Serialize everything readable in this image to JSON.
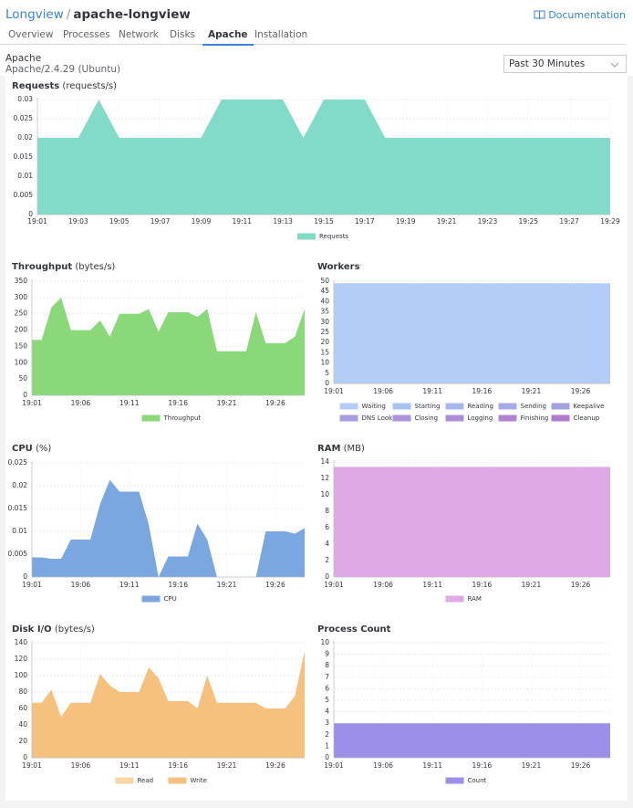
{
  "header": {
    "app": "Longview",
    "separator": "/",
    "name": "apache-longview",
    "docs": "Documentation"
  },
  "tabs": [
    "Overview",
    "Processes",
    "Network",
    "Disks",
    "Apache",
    "Installation"
  ],
  "active_tab": 4,
  "section": {
    "title": "Apache",
    "version": "Apache/2.4.29 (Ubuntu)"
  },
  "range_select": "Past 30 Minutes",
  "chart_data": [
    {
      "type": "area",
      "title": "Requests",
      "unit": "(requests/s)",
      "grid": true,
      "categories": [
        "19:01",
        null,
        "19:03",
        null,
        "19:05",
        null,
        "19:07",
        null,
        "19:09",
        null,
        "19:11",
        null,
        "19:13",
        null,
        "19:15",
        null,
        "19:17",
        null,
        "19:19",
        null,
        "19:21",
        null,
        "19:23",
        null,
        "19:25",
        null,
        "19:27",
        null,
        "19:29"
      ],
      "ylim": [
        0,
        0.03
      ],
      "yticks": [
        0,
        0.005,
        0.01,
        0.015,
        0.02,
        0.025,
        0.03
      ],
      "series": [
        {
          "name": "Requests",
          "color": "#82dac8",
          "values": [
            0.02,
            0.02,
            0.02,
            0.03,
            0.02,
            0.02,
            0.02,
            0.02,
            0.02,
            0.03,
            0.03,
            0.03,
            0.03,
            0.02,
            0.03,
            0.03,
            0.03,
            0.02,
            0.02,
            0.02,
            0.02,
            0.02,
            0.02,
            0.02,
            0.02,
            0.02,
            0.02,
            0.02,
            0.02
          ]
        }
      ]
    },
    {
      "type": "area",
      "title": "Throughput",
      "unit": "(bytes/s)",
      "grid": true,
      "categories": [
        "19:01",
        null,
        null,
        null,
        null,
        "19:06",
        null,
        null,
        null,
        null,
        "19:11",
        null,
        null,
        null,
        null,
        "19:16",
        null,
        null,
        null,
        null,
        "19:21",
        null,
        null,
        null,
        null,
        "19:26",
        null,
        null,
        null
      ],
      "ylim": [
        0,
        350
      ],
      "yticks": [
        0,
        50,
        100,
        150,
        200,
        250,
        300,
        350
      ],
      "series": [
        {
          "name": "Throughput",
          "color": "#8ad87a",
          "values": [
            170,
            170,
            270,
            300,
            200,
            200,
            200,
            230,
            180,
            250,
            250,
            250,
            265,
            195,
            255,
            255,
            255,
            240,
            265,
            135,
            135,
            135,
            135,
            255,
            160,
            160,
            160,
            180,
            265
          ]
        }
      ]
    },
    {
      "type": "area",
      "title": "Workers",
      "grid": true,
      "categories": [
        "19:01",
        null,
        null,
        null,
        null,
        "19:06",
        null,
        null,
        null,
        null,
        "19:11",
        null,
        null,
        null,
        null,
        "19:16",
        null,
        null,
        null,
        null,
        "19:21",
        null,
        null,
        null,
        null,
        "19:26",
        null,
        null,
        null
      ],
      "ylim": [
        0,
        50
      ],
      "yticks": [
        0,
        5,
        10,
        15,
        20,
        25,
        30,
        35,
        40,
        45,
        50
      ],
      "series": [
        {
          "name": "Waiting",
          "color": "#b3cdf7",
          "values": [
            49,
            49,
            49,
            49,
            49,
            49,
            49,
            49,
            49,
            49,
            49,
            49,
            49,
            49,
            49,
            49,
            49,
            49,
            49,
            49,
            49,
            49,
            49,
            49,
            49,
            49,
            49,
            49,
            49
          ]
        },
        {
          "name": "Starting",
          "color": "#a9c4f2",
          "values": [
            0,
            0,
            0,
            0,
            0,
            0,
            0,
            0,
            0,
            0,
            0,
            0,
            0,
            0,
            0,
            0,
            0,
            0,
            0,
            0,
            0,
            0,
            0,
            0,
            0,
            0,
            0,
            0,
            0
          ]
        },
        {
          "name": "Reading",
          "color": "#a8b8ee",
          "values": [
            0,
            0,
            0,
            0,
            0,
            0,
            0,
            0,
            0,
            0,
            0,
            0,
            0,
            0,
            0,
            0,
            0,
            0,
            0,
            0,
            0,
            0,
            0,
            0,
            0,
            0,
            0,
            0,
            0
          ]
        },
        {
          "name": "Sending",
          "color": "#a4abe8",
          "values": [
            0,
            0,
            0,
            0,
            0,
            0,
            0,
            0,
            0,
            0,
            0,
            0,
            0,
            0,
            0,
            0,
            0,
            0,
            0,
            0,
            0,
            0,
            0,
            0,
            0,
            0,
            0,
            0,
            0
          ]
        },
        {
          "name": "Keepalive",
          "color": "#a3a2de",
          "values": [
            0,
            0,
            0,
            0,
            0,
            0,
            0,
            0,
            0,
            0,
            0,
            0,
            0,
            0,
            0,
            0,
            0,
            0,
            0,
            0,
            0,
            0,
            0,
            0,
            0,
            0,
            0,
            0,
            0
          ]
        },
        {
          "name": "DNS Lookup",
          "color": "#a99be0",
          "values": [
            0,
            0,
            0,
            0,
            0,
            0,
            0,
            0,
            0,
            0,
            0,
            0,
            0,
            0,
            0,
            0,
            0,
            0,
            0,
            0,
            0,
            0,
            0,
            0,
            0,
            0,
            0,
            0,
            0
          ]
        },
        {
          "name": "Closing",
          "color": "#ab94dc",
          "values": [
            0,
            0,
            0,
            0,
            0,
            0,
            0,
            0,
            0,
            0,
            0,
            0,
            0,
            0,
            0,
            0,
            0,
            0,
            0,
            0,
            0,
            0,
            0,
            0,
            0,
            0,
            0,
            0,
            0
          ]
        },
        {
          "name": "Logging",
          "color": "#ae8cd6",
          "values": [
            0,
            0,
            0,
            0,
            0,
            0,
            0,
            0,
            0,
            0,
            0,
            0,
            0,
            0,
            0,
            0,
            0,
            0,
            0,
            0,
            0,
            0,
            0,
            0,
            0,
            0,
            0,
            0,
            0
          ]
        },
        {
          "name": "Finishing",
          "color": "#b084d2",
          "values": [
            0,
            0,
            0,
            0,
            0,
            0,
            0,
            0,
            0,
            0,
            0,
            0,
            0,
            0,
            0,
            0,
            0,
            0,
            0,
            0,
            0,
            0,
            0,
            0,
            0,
            0,
            0,
            0,
            0
          ]
        },
        {
          "name": "Cleanup",
          "color": "#b17bcb",
          "values": [
            0,
            0,
            0,
            0,
            0,
            0,
            0,
            0,
            0,
            0,
            0,
            0,
            0,
            0,
            0,
            0,
            0,
            0,
            0,
            0,
            0,
            0,
            0,
            0,
            0,
            0,
            0,
            0,
            0
          ]
        }
      ]
    },
    {
      "type": "area",
      "title": "CPU",
      "unit": "(%)",
      "grid": true,
      "categories": [
        "19:01",
        null,
        null,
        null,
        null,
        "19:06",
        null,
        null,
        null,
        null,
        "19:11",
        null,
        null,
        null,
        null,
        "19:16",
        null,
        null,
        null,
        null,
        "19:21",
        null,
        null,
        null,
        null,
        "19:26",
        null,
        null,
        null
      ],
      "ylim": [
        0,
        0.025
      ],
      "yticks": [
        0,
        0.005,
        0.01,
        0.015,
        0.02,
        0.025
      ],
      "series": [
        {
          "name": "CPU",
          "color": "#7ba7e0",
          "values": [
            0.0043,
            0.0043,
            0.004,
            0.004,
            0.0082,
            0.0082,
            0.0082,
            0.016,
            0.0213,
            0.0187,
            0.0187,
            0.0187,
            0.0115,
            0,
            0.0045,
            0.0045,
            0.0045,
            0.0117,
            0.0082,
            0,
            0,
            0,
            0,
            0,
            0.01,
            0.01,
            0.01,
            0.0095,
            0.0107
          ]
        }
      ]
    },
    {
      "type": "area",
      "title": "RAM",
      "unit": "(MB)",
      "grid": true,
      "categories": [
        "19:01",
        null,
        null,
        null,
        null,
        "19:06",
        null,
        null,
        null,
        null,
        "19:11",
        null,
        null,
        null,
        null,
        "19:16",
        null,
        null,
        null,
        null,
        "19:21",
        null,
        null,
        null,
        null,
        "19:26",
        null,
        null,
        null
      ],
      "ylim": [
        0,
        14
      ],
      "yticks": [
        0,
        2,
        4,
        6,
        8,
        10,
        12,
        14
      ],
      "series": [
        {
          "name": "RAM",
          "color": "#dfa9e6",
          "values": [
            13.4,
            13.4,
            13.4,
            13.4,
            13.4,
            13.4,
            13.4,
            13.4,
            13.4,
            13.4,
            13.4,
            13.4,
            13.4,
            13.4,
            13.4,
            13.4,
            13.4,
            13.4,
            13.4,
            13.4,
            13.4,
            13.4,
            13.4,
            13.4,
            13.4,
            13.4,
            13.4,
            13.4,
            13.4
          ]
        }
      ]
    },
    {
      "type": "area",
      "title": "Disk I/O",
      "unit": "(bytes/s)",
      "grid": true,
      "categories": [
        "19:01",
        null,
        null,
        null,
        null,
        "19:06",
        null,
        null,
        null,
        null,
        "19:11",
        null,
        null,
        null,
        null,
        "19:16",
        null,
        null,
        null,
        null,
        "19:21",
        null,
        null,
        null,
        null,
        "19:26",
        null,
        null,
        null
      ],
      "ylim": [
        0,
        140
      ],
      "yticks": [
        0,
        20,
        40,
        60,
        80,
        100,
        120,
        140
      ],
      "series": [
        {
          "name": "Read",
          "color": "#f8d6a2",
          "values": [
            0,
            0,
            0,
            0,
            0,
            0,
            0,
            0,
            0,
            0,
            0,
            0,
            0,
            0,
            0,
            0,
            0,
            0,
            0,
            0,
            0,
            0,
            0,
            0,
            0,
            0,
            0,
            0,
            0
          ]
        },
        {
          "name": "Write",
          "color": "#f6c07e",
          "values": [
            67,
            67,
            83,
            50,
            67,
            67,
            67,
            102,
            88,
            80,
            80,
            80,
            110,
            97,
            69,
            69,
            69,
            60,
            100,
            67,
            67,
            67,
            67,
            67,
            60,
            60,
            60,
            75,
            130
          ]
        }
      ]
    },
    {
      "type": "area",
      "title": "Process Count",
      "grid": true,
      "categories": [
        "19:01",
        null,
        null,
        null,
        null,
        "19:06",
        null,
        null,
        null,
        null,
        "19:11",
        null,
        null,
        null,
        null,
        "19:16",
        null,
        null,
        null,
        null,
        "19:21",
        null,
        null,
        null,
        null,
        "19:26",
        null,
        null,
        null
      ],
      "ylim": [
        0,
        10
      ],
      "yticks": [
        0,
        1,
        2,
        3,
        4,
        5,
        6,
        7,
        8,
        9,
        10
      ],
      "series": [
        {
          "name": "Count",
          "color": "#9b8fea",
          "values": [
            3,
            3,
            3,
            3,
            3,
            3,
            3,
            3,
            3,
            3,
            3,
            3,
            3,
            3,
            3,
            3,
            3,
            3,
            3,
            3,
            3,
            3,
            3,
            3,
            3,
            3,
            3,
            3,
            3
          ]
        }
      ]
    }
  ]
}
